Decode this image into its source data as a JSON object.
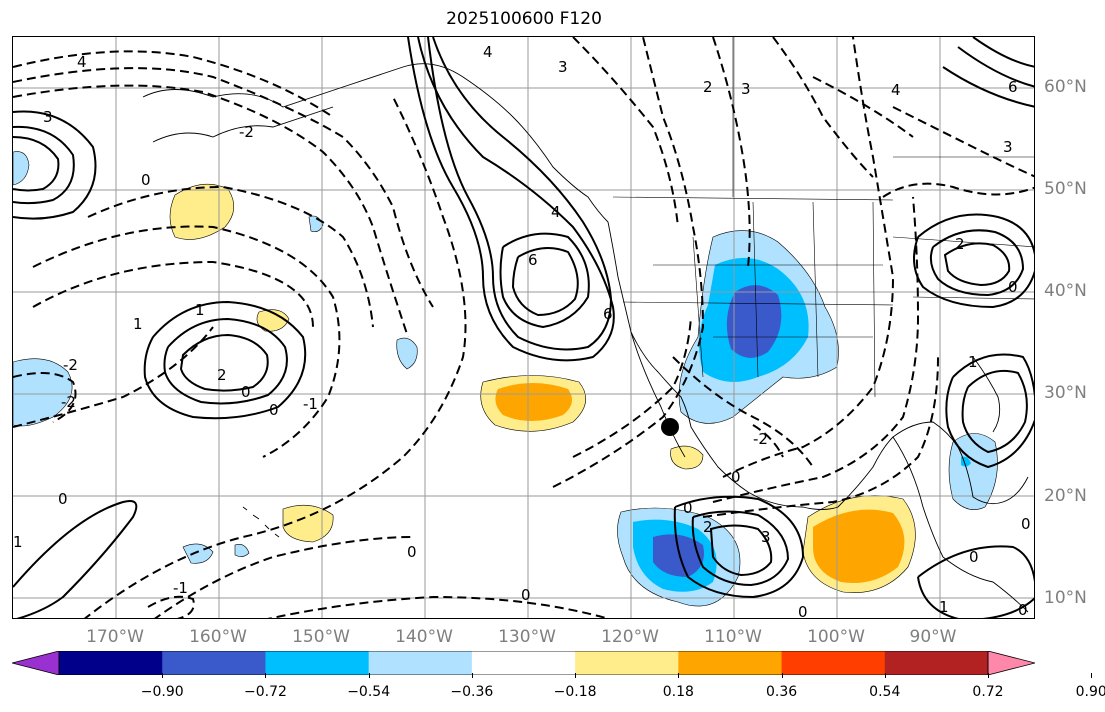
{
  "title": "2025100600 F120",
  "lat_labels": [
    {
      "text": "60°N",
      "lat": 60
    },
    {
      "text": "50°N",
      "lat": 50
    },
    {
      "text": "40°N",
      "lat": 40
    },
    {
      "text": "30°N",
      "lat": 30
    },
    {
      "text": "20°N",
      "lat": 20
    },
    {
      "text": "10°N",
      "lat": 10
    }
  ],
  "lon_labels": [
    {
      "text": "170°W",
      "lon": -170
    },
    {
      "text": "160°W",
      "lon": -160
    },
    {
      "text": "150°W",
      "lon": -150
    },
    {
      "text": "140°W",
      "lon": -140
    },
    {
      "text": "130°W",
      "lon": -130
    },
    {
      "text": "120°W",
      "lon": -120
    },
    {
      "text": "110°W",
      "lon": -110
    },
    {
      "text": "100°W",
      "lon": -100
    },
    {
      "text": "90°W",
      "lon": -90
    }
  ],
  "colorbar": {
    "colors": [
      "#9b30d0",
      "#00008b",
      "#3a5acb",
      "#00bfff",
      "#b0e2ff",
      "#ffffff",
      "#ffec8b",
      "#ffa500",
      "#ff3e00",
      "#b22222",
      "#ff88aa"
    ],
    "ticks": [
      "−0.90",
      "−0.72",
      "−0.54",
      "−0.36",
      "−0.18",
      "0.18",
      "0.36",
      "0.54",
      "0.72",
      "0.90"
    ]
  },
  "marker": {
    "label": "",
    "lat": 26.5,
    "lon": -114.5
  },
  "contour_labels": [
    "4",
    "3",
    "2",
    "1",
    "0",
    "-1",
    "-2",
    "3",
    "4",
    "6",
    "4",
    "6",
    "1",
    "2",
    "0",
    "-1",
    "0",
    "-2",
    "0",
    "2",
    "3",
    "-1",
    "0",
    "-2",
    "0",
    "1",
    "0"
  ]
}
